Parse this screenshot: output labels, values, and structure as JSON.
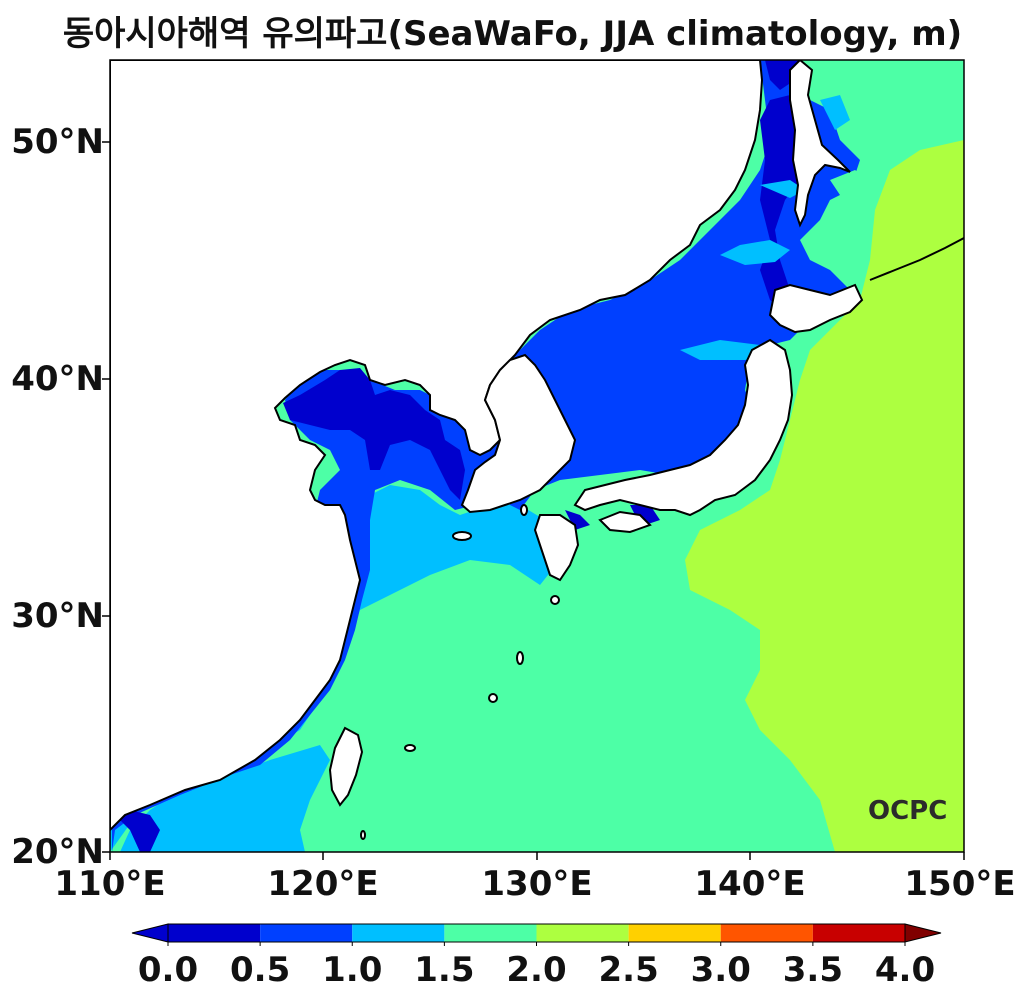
{
  "title": "동아시아해역 유의파고(SeaWaFo, JJA climatology, m)",
  "logo_text": "OCPC",
  "axes": {
    "lat_labels": [
      "50°N",
      "40°N",
      "30°N",
      "20°N"
    ],
    "lon_labels": [
      "110°E",
      "120°E",
      "130°E",
      "140°E",
      "150°E"
    ],
    "lon_range": [
      110,
      150
    ],
    "lat_range": [
      20,
      53.5
    ]
  },
  "colorbar": {
    "ticks": [
      "0.0",
      "0.5",
      "1.0",
      "1.5",
      "2.0",
      "2.5",
      "3.0",
      "3.5",
      "4.0"
    ],
    "colors": [
      "#0000cd",
      "#0040ff",
      "#00bfff",
      "#4dffa6",
      "#adff40",
      "#ffd000",
      "#ff5500",
      "#c80000",
      "#800000"
    ],
    "extend": "both"
  },
  "chart_data": {
    "type": "heatmap",
    "variable": "significant wave height",
    "units": "m",
    "levels": [
      0.0,
      0.5,
      1.0,
      1.5,
      2.0,
      2.5,
      3.0,
      3.5,
      4.0
    ],
    "xlim": [
      110,
      150
    ],
    "ylim": [
      20,
      53.5
    ]
  }
}
